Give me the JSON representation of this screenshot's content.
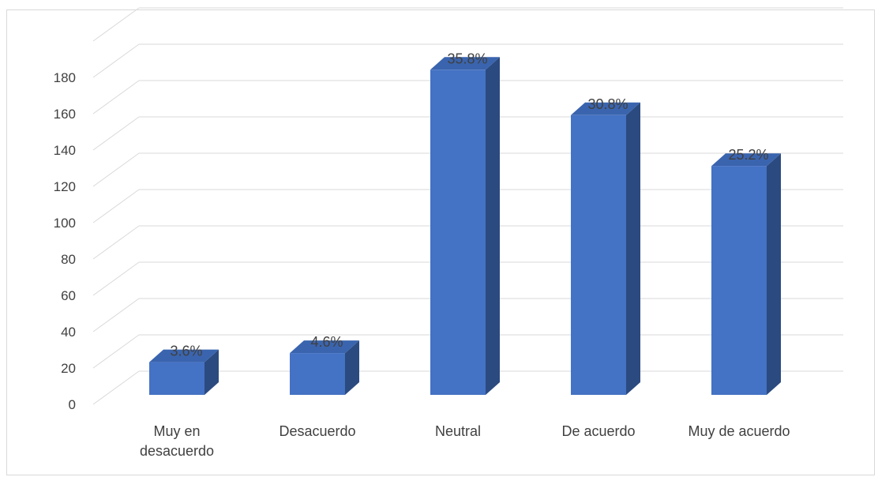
{
  "chart_data": {
    "type": "bar",
    "style": "3d-column",
    "categories": [
      "Muy en desacuerdo",
      "Desacuerdo",
      "Neutral",
      "De acuerdo",
      "Muy de acuerdo"
    ],
    "category_lines": [
      [
        "Muy en",
        "desacuerdo"
      ],
      [
        "Desacuerdo"
      ],
      [
        "Neutral"
      ],
      [
        "De acuerdo"
      ],
      [
        "Muy de acuerdo"
      ]
    ],
    "values": [
      18,
      23,
      179,
      154,
      126
    ],
    "data_labels": [
      "3.6%",
      "4.6%",
      "35.8%",
      "30.8%",
      "25.2%"
    ],
    "yticks": [
      "0",
      "20",
      "40",
      "60",
      "80",
      "100",
      "120",
      "140",
      "160",
      "180"
    ],
    "ylim": [
      0,
      180
    ],
    "grid": true,
    "legend": "none",
    "colors": {
      "front": "#4472C4",
      "side": "#2B4A80",
      "top": "#3A64AE",
      "grid": "#d9d9d9",
      "text": "#404040"
    }
  }
}
